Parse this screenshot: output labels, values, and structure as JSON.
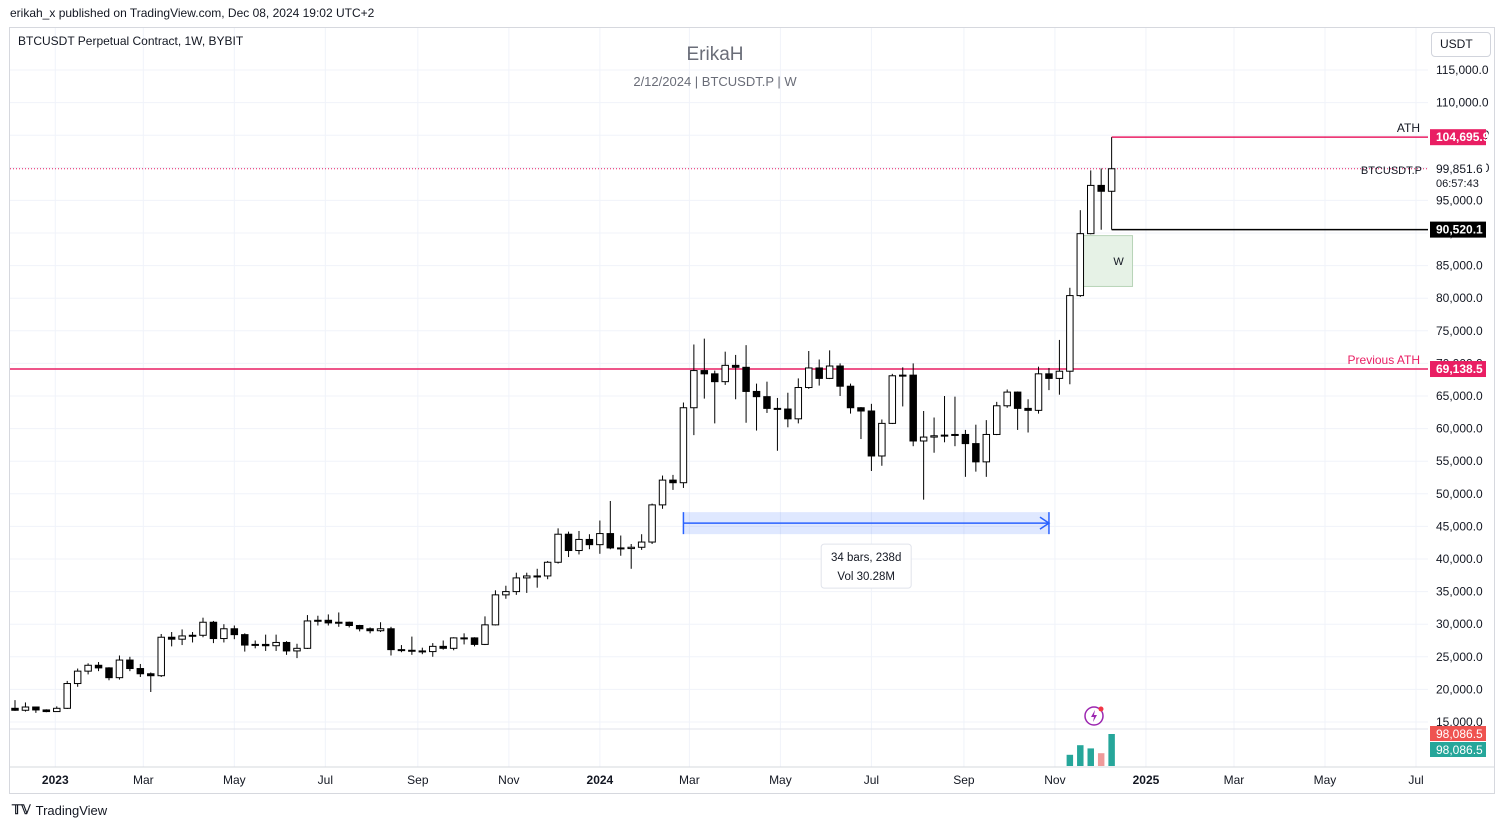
{
  "header": {
    "published": "erikah_x published on TradingView.com, Dec 08, 2024 19:02 UTC+2",
    "symbol_line": "BTCUSDT Perpetual Contract, 1W, BYBIT",
    "currency": "USDT"
  },
  "watermark": {
    "title": "ErikaH",
    "subtitle": "2/12/2024 | BTCUSDT.P | W"
  },
  "footer": {
    "logo": "TradingView"
  },
  "chart_data": {
    "type": "candlestick",
    "symbol": "BTCUSDT.P",
    "timeframe": "1W",
    "y_axis": {
      "range": [
        12500,
        120500
      ],
      "ticks": [
        15000,
        20000,
        25000,
        30000,
        35000,
        40000,
        45000,
        50000,
        55000,
        60000,
        65000,
        70000,
        75000,
        80000,
        85000,
        90000,
        95000,
        100000,
        105000,
        110000,
        115000
      ],
      "tick_labels": [
        "15,000.0",
        "20,000.0",
        "25,000.0",
        "30,000.0",
        "35,000.0",
        "40,000.0",
        "45,000.0",
        "50,000.0",
        "55,000.0",
        "60,000.0",
        "65,000.0",
        "70,000.0",
        "75,000.0",
        "80,000.0",
        "85,000.0",
        "90,000.0",
        "95,000.0",
        "100,000.0",
        "105,000.0",
        "110,000.0",
        "115,000.0"
      ]
    },
    "x_axis": {
      "range": [
        "2022-12-05",
        "2025-07-21"
      ],
      "labels": [
        {
          "date": "2023-01-01",
          "text": "2023",
          "bold": true
        },
        {
          "date": "2023-03-01",
          "text": "Mar"
        },
        {
          "date": "2023-05-01",
          "text": "May"
        },
        {
          "date": "2023-07-01",
          "text": "Jul"
        },
        {
          "date": "2023-09-01",
          "text": "Sep"
        },
        {
          "date": "2023-11-01",
          "text": "Nov"
        },
        {
          "date": "2024-01-01",
          "text": "2024",
          "bold": true
        },
        {
          "date": "2024-03-01",
          "text": "Mar"
        },
        {
          "date": "2024-05-01",
          "text": "May"
        },
        {
          "date": "2024-07-01",
          "text": "Jul"
        },
        {
          "date": "2024-09-01",
          "text": "Sep"
        },
        {
          "date": "2024-11-01",
          "text": "Nov"
        },
        {
          "date": "2025-01-01",
          "text": "2025",
          "bold": true
        },
        {
          "date": "2025-03-01",
          "text": "Mar"
        },
        {
          "date": "2025-05-01",
          "text": "May"
        },
        {
          "date": "2025-07-01",
          "text": "Jul"
        }
      ]
    },
    "grid": true,
    "colors": {
      "up_body": "#ffffff",
      "down_body": "#000000",
      "wick": "#000000",
      "ath": "#e91e63",
      "grid": "#f0f3fa"
    },
    "candles": [
      {
        "t": "2022-12-05",
        "o": 17100,
        "h": 18350,
        "l": 16700,
        "c": 16800
      },
      {
        "t": "2022-12-12",
        "o": 16800,
        "h": 18000,
        "l": 16600,
        "c": 17300
      },
      {
        "t": "2022-12-19",
        "o": 17300,
        "h": 17100,
        "l": 16400,
        "c": 16850
      },
      {
        "t": "2022-12-26",
        "o": 16850,
        "h": 16950,
        "l": 16500,
        "c": 16600
      },
      {
        "t": "2023-01-02",
        "o": 16600,
        "h": 17400,
        "l": 16550,
        "c": 17100
      },
      {
        "t": "2023-01-09",
        "o": 17100,
        "h": 21300,
        "l": 17000,
        "c": 20900
      },
      {
        "t": "2023-01-16",
        "o": 20900,
        "h": 23200,
        "l": 20400,
        "c": 22800
      },
      {
        "t": "2023-01-23",
        "o": 22800,
        "h": 24000,
        "l": 22300,
        "c": 23700
      },
      {
        "t": "2023-01-30",
        "o": 23700,
        "h": 24200,
        "l": 22800,
        "c": 23300
      },
      {
        "t": "2023-02-06",
        "o": 23300,
        "h": 23400,
        "l": 21400,
        "c": 21800
      },
      {
        "t": "2023-02-13",
        "o": 21800,
        "h": 25200,
        "l": 21500,
        "c": 24500
      },
      {
        "t": "2023-02-20",
        "o": 24500,
        "h": 25000,
        "l": 22800,
        "c": 23200
      },
      {
        "t": "2023-02-27",
        "o": 23200,
        "h": 23900,
        "l": 21900,
        "c": 22400
      },
      {
        "t": "2023-03-06",
        "o": 22400,
        "h": 22600,
        "l": 19600,
        "c": 22100
      },
      {
        "t": "2023-03-13",
        "o": 22100,
        "h": 28500,
        "l": 21900,
        "c": 28000
      },
      {
        "t": "2023-03-20",
        "o": 28000,
        "h": 28800,
        "l": 26600,
        "c": 27700
      },
      {
        "t": "2023-03-27",
        "o": 27700,
        "h": 29200,
        "l": 26800,
        "c": 28200
      },
      {
        "t": "2023-04-03",
        "o": 28200,
        "h": 28800,
        "l": 27200,
        "c": 28300
      },
      {
        "t": "2023-04-10",
        "o": 28300,
        "h": 31000,
        "l": 28000,
        "c": 30300
      },
      {
        "t": "2023-04-17",
        "o": 30300,
        "h": 30500,
        "l": 27100,
        "c": 27800
      },
      {
        "t": "2023-04-24",
        "o": 27800,
        "h": 30000,
        "l": 27200,
        "c": 29300
      },
      {
        "t": "2023-05-01",
        "o": 29300,
        "h": 29800,
        "l": 27700,
        "c": 28400
      },
      {
        "t": "2023-05-08",
        "o": 28400,
        "h": 28600,
        "l": 25800,
        "c": 26800
      },
      {
        "t": "2023-05-15",
        "o": 26800,
        "h": 27500,
        "l": 26300,
        "c": 26900
      },
      {
        "t": "2023-05-22",
        "o": 26900,
        "h": 28400,
        "l": 25900,
        "c": 26700
      },
      {
        "t": "2023-05-29",
        "o": 26700,
        "h": 28400,
        "l": 25900,
        "c": 27200
      },
      {
        "t": "2023-06-05",
        "o": 27200,
        "h": 27400,
        "l": 25300,
        "c": 25900
      },
      {
        "t": "2023-06-12",
        "o": 25900,
        "h": 27000,
        "l": 24800,
        "c": 26300
      },
      {
        "t": "2023-06-19",
        "o": 26300,
        "h": 31400,
        "l": 26200,
        "c": 30500
      },
      {
        "t": "2023-06-26",
        "o": 30500,
        "h": 31300,
        "l": 29800,
        "c": 30600
      },
      {
        "t": "2023-07-03",
        "o": 30600,
        "h": 31500,
        "l": 29800,
        "c": 30200
      },
      {
        "t": "2023-07-10",
        "o": 30200,
        "h": 31800,
        "l": 29600,
        "c": 30300
      },
      {
        "t": "2023-07-17",
        "o": 30300,
        "h": 30400,
        "l": 29500,
        "c": 29800
      },
      {
        "t": "2023-07-24",
        "o": 29800,
        "h": 29900,
        "l": 28900,
        "c": 29300
      },
      {
        "t": "2023-07-31",
        "o": 29300,
        "h": 29500,
        "l": 28600,
        "c": 29000
      },
      {
        "t": "2023-08-07",
        "o": 29000,
        "h": 30300,
        "l": 28800,
        "c": 29300
      },
      {
        "t": "2023-08-14",
        "o": 29300,
        "h": 29600,
        "l": 25200,
        "c": 26100
      },
      {
        "t": "2023-08-21",
        "o": 26100,
        "h": 26800,
        "l": 25700,
        "c": 26000
      },
      {
        "t": "2023-08-28",
        "o": 26000,
        "h": 28100,
        "l": 25300,
        "c": 25900
      },
      {
        "t": "2023-09-04",
        "o": 25900,
        "h": 26400,
        "l": 25400,
        "c": 25800
      },
      {
        "t": "2023-09-11",
        "o": 25800,
        "h": 27100,
        "l": 25000,
        "c": 26600
      },
      {
        "t": "2023-09-18",
        "o": 26600,
        "h": 27500,
        "l": 26100,
        "c": 26300
      },
      {
        "t": "2023-09-25",
        "o": 26300,
        "h": 28000,
        "l": 26000,
        "c": 27900
      },
      {
        "t": "2023-10-02",
        "o": 27900,
        "h": 28600,
        "l": 26900,
        "c": 27900
      },
      {
        "t": "2023-10-09",
        "o": 27900,
        "h": 28000,
        "l": 26600,
        "c": 26900
      },
      {
        "t": "2023-10-16",
        "o": 26900,
        "h": 31200,
        "l": 26800,
        "c": 29900
      },
      {
        "t": "2023-10-23",
        "o": 29900,
        "h": 35200,
        "l": 29800,
        "c": 34500
      },
      {
        "t": "2023-10-30",
        "o": 34500,
        "h": 35900,
        "l": 33900,
        "c": 35000
      },
      {
        "t": "2023-11-06",
        "o": 35000,
        "h": 37900,
        "l": 34500,
        "c": 37100
      },
      {
        "t": "2023-11-13",
        "o": 37100,
        "h": 37900,
        "l": 34800,
        "c": 37400
      },
      {
        "t": "2023-11-20",
        "o": 37400,
        "h": 38500,
        "l": 35600,
        "c": 37400
      },
      {
        "t": "2023-11-27",
        "o": 37400,
        "h": 39700,
        "l": 36900,
        "c": 39500
      },
      {
        "t": "2023-12-04",
        "o": 39500,
        "h": 44700,
        "l": 39300,
        "c": 43800
      },
      {
        "t": "2023-12-11",
        "o": 43800,
        "h": 44200,
        "l": 40300,
        "c": 41300
      },
      {
        "t": "2023-12-18",
        "o": 41300,
        "h": 44300,
        "l": 40700,
        "c": 43000
      },
      {
        "t": "2023-12-25",
        "o": 43000,
        "h": 43800,
        "l": 41500,
        "c": 42200
      },
      {
        "t": "2024-01-01",
        "o": 42200,
        "h": 45900,
        "l": 40800,
        "c": 43900
      },
      {
        "t": "2024-01-08",
        "o": 43900,
        "h": 48900,
        "l": 41500,
        "c": 41700
      },
      {
        "t": "2024-01-15",
        "o": 41700,
        "h": 43600,
        "l": 40500,
        "c": 41600
      },
      {
        "t": "2024-01-22",
        "o": 41600,
        "h": 42300,
        "l": 38500,
        "c": 41800
      },
      {
        "t": "2024-01-29",
        "o": 41800,
        "h": 43800,
        "l": 41400,
        "c": 42600
      },
      {
        "t": "2024-02-05",
        "o": 42600,
        "h": 48500,
        "l": 42300,
        "c": 48300
      },
      {
        "t": "2024-02-12",
        "o": 48300,
        "h": 52800,
        "l": 47700,
        "c": 52100
      },
      {
        "t": "2024-02-19",
        "o": 52100,
        "h": 52900,
        "l": 50600,
        "c": 51700
      },
      {
        "t": "2024-02-26",
        "o": 51700,
        "h": 64000,
        "l": 50900,
        "c": 63200
      },
      {
        "t": "2024-03-04",
        "o": 63200,
        "h": 72900,
        "l": 59000,
        "c": 68900
      },
      {
        "t": "2024-03-11",
        "o": 68900,
        "h": 73800,
        "l": 64600,
        "c": 68400
      },
      {
        "t": "2024-03-18",
        "o": 68400,
        "h": 68900,
        "l": 60800,
        "c": 67200
      },
      {
        "t": "2024-03-25",
        "o": 67200,
        "h": 71800,
        "l": 66700,
        "c": 69700
      },
      {
        "t": "2024-04-01",
        "o": 69700,
        "h": 71300,
        "l": 64500,
        "c": 69400
      },
      {
        "t": "2024-04-08",
        "o": 69400,
        "h": 72800,
        "l": 60900,
        "c": 65700
      },
      {
        "t": "2024-04-15",
        "o": 65700,
        "h": 66900,
        "l": 59700,
        "c": 64900
      },
      {
        "t": "2024-04-22",
        "o": 64900,
        "h": 67200,
        "l": 62400,
        "c": 63100
      },
      {
        "t": "2024-04-29",
        "o": 63100,
        "h": 64700,
        "l": 56600,
        "c": 63000
      },
      {
        "t": "2024-05-06",
        "o": 63000,
        "h": 65500,
        "l": 60200,
        "c": 61500
      },
      {
        "t": "2024-05-13",
        "o": 61500,
        "h": 67700,
        "l": 60800,
        "c": 66300
      },
      {
        "t": "2024-05-20",
        "o": 66300,
        "h": 71900,
        "l": 66100,
        "c": 69300
      },
      {
        "t": "2024-05-27",
        "o": 69300,
        "h": 70600,
        "l": 66600,
        "c": 67700
      },
      {
        "t": "2024-06-03",
        "o": 67700,
        "h": 72000,
        "l": 67600,
        "c": 69600
      },
      {
        "t": "2024-06-10",
        "o": 69600,
        "h": 70000,
        "l": 65000,
        "c": 66500
      },
      {
        "t": "2024-06-17",
        "o": 66500,
        "h": 66900,
        "l": 62300,
        "c": 63200
      },
      {
        "t": "2024-06-24",
        "o": 63200,
        "h": 63300,
        "l": 58400,
        "c": 62700
      },
      {
        "t": "2024-07-01",
        "o": 62700,
        "h": 63800,
        "l": 53500,
        "c": 55800
      },
      {
        "t": "2024-07-08",
        "o": 55800,
        "h": 61400,
        "l": 54300,
        "c": 60800
      },
      {
        "t": "2024-07-15",
        "o": 60800,
        "h": 68400,
        "l": 60700,
        "c": 68100
      },
      {
        "t": "2024-07-22",
        "o": 68100,
        "h": 69400,
        "l": 63400,
        "c": 68200
      },
      {
        "t": "2024-07-29",
        "o": 68200,
        "h": 70000,
        "l": 57300,
        "c": 58100
      },
      {
        "t": "2024-08-05",
        "o": 58100,
        "h": 62700,
        "l": 49100,
        "c": 58700
      },
      {
        "t": "2024-08-12",
        "o": 58700,
        "h": 61700,
        "l": 56300,
        "c": 58900
      },
      {
        "t": "2024-08-19",
        "o": 58900,
        "h": 65000,
        "l": 57900,
        "c": 59000
      },
      {
        "t": "2024-08-26",
        "o": 59000,
        "h": 64900,
        "l": 57300,
        "c": 59100
      },
      {
        "t": "2024-09-02",
        "o": 59100,
        "h": 59800,
        "l": 52600,
        "c": 57700
      },
      {
        "t": "2024-09-09",
        "o": 57700,
        "h": 60600,
        "l": 53400,
        "c": 54900
      },
      {
        "t": "2024-09-16",
        "o": 54900,
        "h": 61300,
        "l": 52600,
        "c": 59100
      },
      {
        "t": "2024-09-23",
        "o": 59100,
        "h": 64100,
        "l": 59000,
        "c": 63500
      },
      {
        "t": "2024-09-30",
        "o": 63500,
        "h": 66000,
        "l": 63200,
        "c": 65600
      },
      {
        "t": "2024-10-07",
        "o": 65600,
        "h": 65700,
        "l": 59800,
        "c": 63100
      },
      {
        "t": "2024-10-14",
        "o": 63100,
        "h": 64500,
        "l": 59400,
        "c": 62800
      },
      {
        "t": "2024-10-21",
        "o": 62800,
        "h": 69500,
        "l": 62300,
        "c": 68400
      },
      {
        "t": "2024-10-28",
        "o": 68400,
        "h": 69300,
        "l": 65900,
        "c": 67700
      },
      {
        "t": "2024-11-04",
        "o": 67700,
        "h": 73600,
        "l": 65200,
        "c": 68800
      },
      {
        "t": "2024-11-11",
        "o": 68800,
        "h": 81600,
        "l": 66800,
        "c": 80400
      },
      {
        "t": "2024-11-18",
        "o": 80400,
        "h": 93500,
        "l": 80200,
        "c": 89900
      },
      {
        "t": "2024-11-25",
        "o": 89900,
        "h": 99600,
        "l": 89800,
        "c": 97300
      },
      {
        "t": "2024-12-02",
        "o": 97300,
        "h": 99900,
        "l": 90500,
        "c": 96400
      },
      {
        "t": "2024-12-09",
        "o": 96400,
        "h": 104695.9,
        "l": 90520.1,
        "c": 99851.6
      }
    ],
    "volume": [
      {
        "t": "2024-11-11",
        "v": 0.35,
        "up": true
      },
      {
        "t": "2024-11-18",
        "v": 0.65,
        "up": true
      },
      {
        "t": "2024-11-25",
        "v": 0.55,
        "up": true
      },
      {
        "t": "2024-12-02",
        "v": 0.4,
        "up": false
      },
      {
        "t": "2024-12-09",
        "v": 1.0,
        "up": true
      }
    ],
    "volume_color": "#26a69a",
    "horizontal_lines": [
      {
        "value": 69138.5,
        "label": "Previous ATH",
        "price_label": "69,138.5",
        "color": "#e91e63",
        "full_width": true
      },
      {
        "value": 104695.9,
        "label": "ATH",
        "price_label": "104,695.9",
        "color": "#e91e63",
        "from": "2024-12-09"
      },
      {
        "value": 90520.1,
        "label": "",
        "price_label": "90,520.1",
        "color": "#000000",
        "from": "2024-12-09"
      }
    ],
    "current_price": {
      "value": 99851.6,
      "label": "99,851.6",
      "countdown": "06:57:43",
      "symbol": "BTCUSDT.P",
      "color": "#e91e63"
    },
    "zone": {
      "from": "2024-11-18",
      "to": "2024-12-16",
      "low": 81800,
      "high": 89600,
      "label": "W",
      "color": "#e6f2e6"
    },
    "range_measure": {
      "from": "2024-02-26",
      "to": "2024-10-28",
      "value": 45500,
      "label_line1": "34 bars, 238d",
      "label_line2": "Vol 30.28M",
      "color": "#2962ff"
    },
    "bottom_labels": [
      {
        "text": "98,086.5",
        "color": "#ef5350"
      },
      {
        "text": "98,086.5",
        "color": "#26a69a"
      }
    ]
  }
}
